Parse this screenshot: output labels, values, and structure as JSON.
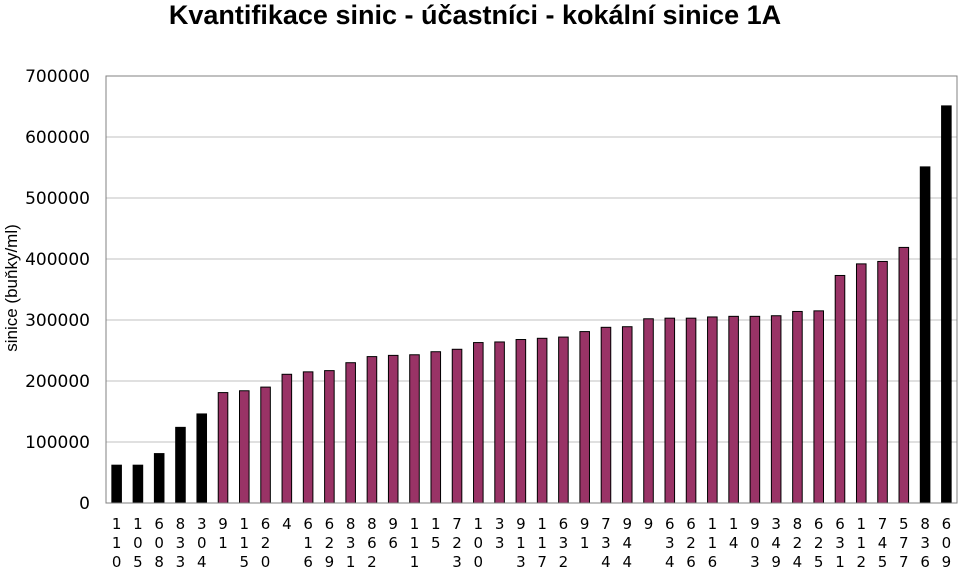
{
  "chart_data": {
    "type": "bar",
    "title": "Kvantifikace sinic - účastníci - kokální sinice 1A",
    "xlabel": "",
    "ylabel": "sinice (buňky/ml)",
    "ylim": [
      0,
      700000
    ],
    "yticks": [
      "0",
      "100000",
      "200000",
      "300000",
      "400000",
      "500000",
      "600000",
      "700000"
    ],
    "grid": true,
    "legend": "none",
    "colors": {
      "outlier": "#000000",
      "normal": "#993366",
      "grid": "#c0c0c0",
      "axis": "#808080"
    },
    "categories": [
      "110",
      "105",
      "608",
      "833",
      "304",
      "91",
      "115",
      "620",
      "4",
      "616",
      "629",
      "831",
      "862",
      "96",
      "111",
      "15",
      "723",
      "100",
      "33",
      "913",
      "117",
      "632",
      "91",
      "734",
      "944",
      "9",
      "634",
      "626",
      "116",
      "14",
      "903",
      "349",
      "824",
      "625",
      "631",
      "112",
      "745",
      "577",
      "836",
      "609"
    ],
    "values": [
      62000,
      62000,
      81000,
      124000,
      146000,
      181000,
      184000,
      190000,
      211000,
      215000,
      217000,
      230000,
      240000,
      242000,
      243000,
      248000,
      252000,
      263000,
      264000,
      268000,
      270000,
      272000,
      281000,
      288000,
      289000,
      302000,
      303000,
      303000,
      305000,
      306000,
      306000,
      307000,
      314000,
      315000,
      373000,
      392000,
      396000,
      419000,
      551000,
      651000
    ],
    "bar_color": [
      "outlier",
      "outlier",
      "outlier",
      "outlier",
      "outlier",
      "normal",
      "normal",
      "normal",
      "normal",
      "normal",
      "normal",
      "normal",
      "normal",
      "normal",
      "normal",
      "normal",
      "normal",
      "normal",
      "normal",
      "normal",
      "normal",
      "normal",
      "normal",
      "normal",
      "normal",
      "normal",
      "normal",
      "normal",
      "normal",
      "normal",
      "normal",
      "normal",
      "normal",
      "normal",
      "normal",
      "normal",
      "normal",
      "normal",
      "outlier",
      "outlier"
    ]
  }
}
